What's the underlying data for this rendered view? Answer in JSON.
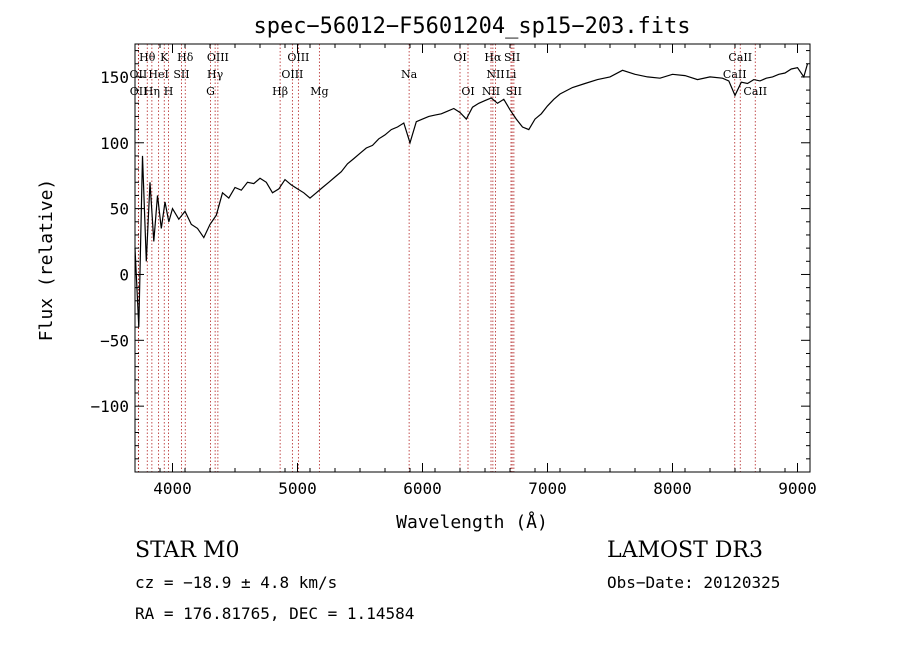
{
  "chart_data": {
    "type": "line",
    "title": "spec−56012−F5601204_sp15−203.fits",
    "xlabel": "Wavelength (Å)",
    "ylabel": "Flux (relative)",
    "xlim": [
      3700,
      9100
    ],
    "ylim": [
      -150,
      175
    ],
    "x_ticks": [
      4000,
      5000,
      6000,
      7000,
      8000,
      9000
    ],
    "x_tick_labels": [
      "4000",
      "5000",
      "6000",
      "7000",
      "8000",
      "9000"
    ],
    "y_ticks": [
      -100,
      -50,
      0,
      50,
      100,
      150
    ],
    "y_tick_labels": [
      "−100",
      "−50",
      "0",
      "50",
      "100",
      "150"
    ],
    "grid": false,
    "series": [
      {
        "name": "spectrum",
        "x": [
          3700,
          3730,
          3760,
          3790,
          3820,
          3850,
          3880,
          3910,
          3940,
          3970,
          4000,
          4050,
          4100,
          4150,
          4200,
          4250,
          4300,
          4350,
          4400,
          4450,
          4500,
          4550,
          4600,
          4650,
          4700,
          4750,
          4800,
          4850,
          4900,
          4950,
          5000,
          5050,
          5100,
          5150,
          5200,
          5250,
          5300,
          5350,
          5400,
          5450,
          5500,
          5550,
          5600,
          5650,
          5700,
          5750,
          5800,
          5850,
          5900,
          5950,
          6000,
          6050,
          6100,
          6150,
          6200,
          6250,
          6300,
          6350,
          6400,
          6450,
          6500,
          6550,
          6600,
          6650,
          6700,
          6750,
          6800,
          6850,
          6900,
          6950,
          7000,
          7050,
          7100,
          7200,
          7300,
          7400,
          7500,
          7600,
          7700,
          7800,
          7900,
          8000,
          8100,
          8200,
          8300,
          8400,
          8450,
          8500,
          8550,
          8600,
          8650,
          8700,
          8750,
          8800,
          8850,
          8900,
          8950,
          9000,
          9050,
          9080
        ],
        "y": [
          20,
          -40,
          90,
          10,
          70,
          25,
          60,
          35,
          55,
          40,
          50,
          42,
          48,
          38,
          35,
          28,
          38,
          45,
          62,
          58,
          66,
          64,
          70,
          69,
          73,
          70,
          62,
          65,
          72,
          68,
          65,
          62,
          58,
          62,
          66,
          70,
          74,
          78,
          84,
          88,
          92,
          96,
          98,
          103,
          106,
          110,
          112,
          115,
          100,
          116,
          118,
          120,
          121,
          122,
          124,
          126,
          123,
          118,
          127,
          130,
          132,
          134,
          130,
          133,
          125,
          118,
          112,
          110,
          118,
          122,
          128,
          133,
          137,
          142,
          145,
          148,
          150,
          155,
          152,
          150,
          149,
          152,
          151,
          148,
          150,
          149,
          147,
          136,
          146,
          145,
          148,
          147,
          149,
          150,
          152,
          153,
          156,
          157,
          150,
          160
        ]
      }
    ],
    "lines": [
      {
        "label": "Hθ",
        "x": 3798,
        "row": 1
      },
      {
        "label": "K",
        "x": 3934,
        "row": 1
      },
      {
        "label": "Hδ",
        "x": 4102,
        "row": 1
      },
      {
        "label": "OIII",
        "x": 4363,
        "row": 1
      },
      {
        "label": "OIII",
        "x": 5007,
        "row": 1
      },
      {
        "label": "OI",
        "x": 6300,
        "row": 1
      },
      {
        "label": "Hα",
        "x": 6563,
        "row": 1
      },
      {
        "label": "SII",
        "x": 6717,
        "row": 1
      },
      {
        "label": "CaII",
        "x": 8542,
        "row": 1
      },
      {
        "label": "OII",
        "x": 3727,
        "row": 2
      },
      {
        "label": "HeI",
        "x": 3889,
        "row": 2
      },
      {
        "label": "SII",
        "x": 4072,
        "row": 2
      },
      {
        "label": "Hγ",
        "x": 4341,
        "row": 2
      },
      {
        "label": "OIII",
        "x": 4959,
        "row": 2
      },
      {
        "label": "Na",
        "x": 5893,
        "row": 2
      },
      {
        "label": "NII",
        "x": 6584,
        "row": 2
      },
      {
        "label": "Li",
        "x": 6708,
        "row": 2
      },
      {
        "label": "CaII",
        "x": 8498,
        "row": 2
      },
      {
        "label": "OII",
        "x": 3729,
        "row": 3
      },
      {
        "label": "Hη",
        "x": 3835,
        "row": 3
      },
      {
        "label": "H",
        "x": 3968,
        "row": 3
      },
      {
        "label": "G",
        "x": 4304,
        "row": 3
      },
      {
        "label": "Hβ",
        "x": 4861,
        "row": 3
      },
      {
        "label": "Mg",
        "x": 5175,
        "row": 3
      },
      {
        "label": "OI",
        "x": 6364,
        "row": 3
      },
      {
        "label": "NII",
        "x": 6548,
        "row": 3
      },
      {
        "label": "SII",
        "x": 6731,
        "row": 3
      },
      {
        "label": "CaII",
        "x": 8662,
        "row": 3
      }
    ]
  },
  "info": {
    "star_label": "STAR    M0",
    "survey": "LAMOST DR3",
    "cz": "cz = −18.9 ± 4.8 km/s",
    "obs_date": "Obs−Date: 20120325",
    "ra_dec": "RA = 176.81765, DEC =    1.14584"
  }
}
